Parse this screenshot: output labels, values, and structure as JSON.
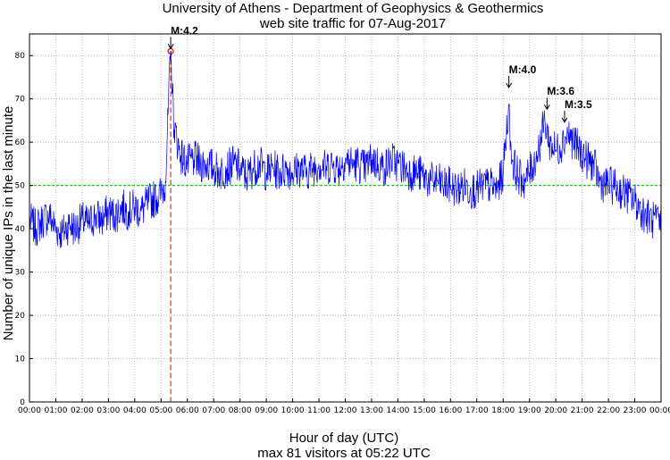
{
  "chart_data": {
    "type": "line",
    "title": "University of Athens - Department of Geophysics & Geothermics",
    "subtitle": "web site traffic for 07-Aug-2017",
    "xlabel": "Hour of day (UTC)",
    "footer": "max 81 visitors at 05:22 UTC",
    "ylabel": "Number of unique IPs in the last minute",
    "x_range_minutes": [
      0,
      1440
    ],
    "ylim": [
      0,
      85
    ],
    "x_tick_labels": [
      "00:00",
      "01:00",
      "02:00",
      "03:00",
      "04:00",
      "05:00",
      "06:00",
      "07:00",
      "08:00",
      "09:00",
      "10:00",
      "11:00",
      "12:00",
      "13:00",
      "14:00",
      "15:00",
      "16:00",
      "17:00",
      "18:00",
      "19:00",
      "20:00",
      "21:00",
      "22:00",
      "23:00",
      "00:00"
    ],
    "y_ticks": [
      0,
      10,
      20,
      30,
      40,
      50,
      60,
      70,
      80
    ],
    "grid": true,
    "series": [
      {
        "color": "#0000ee",
        "points": [
          [
            0,
            42
          ],
          [
            15,
            40
          ],
          [
            30,
            42
          ],
          [
            45,
            43
          ],
          [
            60,
            40
          ],
          [
            75,
            39
          ],
          [
            90,
            41
          ],
          [
            105,
            40
          ],
          [
            120,
            42
          ],
          [
            135,
            41
          ],
          [
            150,
            43
          ],
          [
            165,
            42
          ],
          [
            180,
            44
          ],
          [
            195,
            43
          ],
          [
            210,
            45
          ],
          [
            225,
            44
          ],
          [
            240,
            45
          ],
          [
            255,
            44
          ],
          [
            270,
            46
          ],
          [
            285,
            47
          ],
          [
            300,
            48
          ],
          [
            310,
            51
          ],
          [
            322,
            81
          ],
          [
            330,
            63
          ],
          [
            345,
            57
          ],
          [
            360,
            55
          ],
          [
            375,
            56
          ],
          [
            390,
            55
          ],
          [
            405,
            55
          ],
          [
            420,
            54
          ],
          [
            435,
            53
          ],
          [
            450,
            54
          ],
          [
            465,
            55
          ],
          [
            480,
            54
          ],
          [
            495,
            52
          ],
          [
            510,
            54
          ],
          [
            525,
            55
          ],
          [
            540,
            53
          ],
          [
            555,
            54
          ],
          [
            570,
            53
          ],
          [
            585,
            54
          ],
          [
            600,
            53
          ],
          [
            615,
            54
          ],
          [
            630,
            53
          ],
          [
            645,
            54
          ],
          [
            660,
            55
          ],
          [
            675,
            54
          ],
          [
            690,
            55
          ],
          [
            705,
            54
          ],
          [
            720,
            56
          ],
          [
            735,
            55
          ],
          [
            750,
            55
          ],
          [
            765,
            54
          ],
          [
            780,
            56
          ],
          [
            795,
            55
          ],
          [
            810,
            54
          ],
          [
            825,
            56
          ],
          [
            840,
            55
          ],
          [
            855,
            54
          ],
          [
            870,
            53
          ],
          [
            885,
            53
          ],
          [
            900,
            52
          ],
          [
            915,
            51
          ],
          [
            930,
            51
          ],
          [
            945,
            50
          ],
          [
            960,
            50
          ],
          [
            975,
            49
          ],
          [
            990,
            50
          ],
          [
            1005,
            49
          ],
          [
            1020,
            49
          ],
          [
            1035,
            50
          ],
          [
            1050,
            50
          ],
          [
            1065,
            49
          ],
          [
            1080,
            53
          ],
          [
            1092,
            68
          ],
          [
            1100,
            56
          ],
          [
            1115,
            52
          ],
          [
            1130,
            51
          ],
          [
            1145,
            54
          ],
          [
            1160,
            58
          ],
          [
            1175,
            65
          ],
          [
            1185,
            60
          ],
          [
            1200,
            58
          ],
          [
            1215,
            60
          ],
          [
            1228,
            62
          ],
          [
            1240,
            60
          ],
          [
            1255,
            58
          ],
          [
            1270,
            56
          ],
          [
            1285,
            55
          ],
          [
            1300,
            51
          ],
          [
            1315,
            50
          ],
          [
            1330,
            50
          ],
          [
            1345,
            49
          ],
          [
            1360,
            48
          ],
          [
            1375,
            47
          ],
          [
            1390,
            45
          ],
          [
            1405,
            43
          ],
          [
            1420,
            42
          ],
          [
            1440,
            41
          ]
        ]
      }
    ],
    "threshold_line": {
      "y": 50,
      "color": "#00e000"
    },
    "max_marker": {
      "x_minutes": 322,
      "y": 81,
      "color": "#e00000"
    },
    "annotations": [
      {
        "text": "M:4.2",
        "x_minutes": 322,
        "y": 81
      },
      {
        "text": "M:4.0",
        "x_minutes": 1093,
        "y": 72
      },
      {
        "text": "M:3.6",
        "x_minutes": 1180,
        "y": 67
      },
      {
        "text": "M:3.5",
        "x_minutes": 1220,
        "y": 64
      }
    ]
  }
}
